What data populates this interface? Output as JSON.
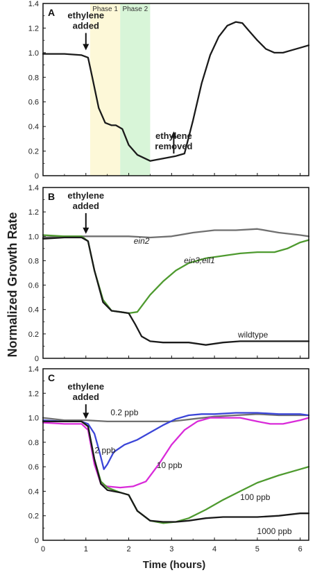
{
  "chart_data": {
    "type": "line",
    "ylabel": "Normalized Growth Rate",
    "xlabel": "Time (hours)",
    "xlim": [
      0,
      6.2
    ],
    "x_ticks": [
      "0",
      "1",
      "2",
      "3",
      "4",
      "5",
      "6"
    ],
    "ylim": [
      0,
      1.4
    ],
    "y_ticks": [
      "0",
      "0.2",
      "0.4",
      "0.6",
      "0.8",
      "1.0",
      "1.2",
      "1.4"
    ],
    "panels": [
      {
        "letter": "A",
        "shaded_regions": [
          {
            "label": "Phase 1",
            "x_start": 1.1,
            "x_end": 1.8,
            "color": "#fdf8d8"
          },
          {
            "label": "Phase 2",
            "x_start": 1.8,
            "x_end": 2.5,
            "color": "#d8f5d8"
          }
        ],
        "annotations": [
          {
            "text": "ethylene added",
            "lines": [
              "ethylene",
              "added"
            ],
            "arrow_x": 1.0,
            "arrow_from_y": 1.16,
            "arrow_to_y": 1.02,
            "direction": "down"
          },
          {
            "text": "ethylene removed",
            "lines": [
              "ethylene",
              "removed"
            ],
            "arrow_x": 3.05,
            "arrow_from_y": 0.18,
            "arrow_to_y": 0.36,
            "direction": "up"
          }
        ],
        "series": [
          {
            "color": "#1a1a1a",
            "x": [
              0,
              0.5,
              0.9,
              1.05,
              1.15,
              1.3,
              1.45,
              1.6,
              1.7,
              1.85,
              2.0,
              2.2,
              2.5,
              2.8,
              3.1,
              3.3,
              3.5,
              3.7,
              3.9,
              4.1,
              4.3,
              4.5,
              4.65,
              4.8,
              5.0,
              5.2,
              5.4,
              5.6,
              5.8,
              6.0,
              6.2
            ],
            "y": [
              0.99,
              0.99,
              0.98,
              0.96,
              0.8,
              0.55,
              0.43,
              0.41,
              0.41,
              0.38,
              0.25,
              0.17,
              0.12,
              0.14,
              0.16,
              0.18,
              0.45,
              0.75,
              0.98,
              1.13,
              1.22,
              1.25,
              1.24,
              1.18,
              1.1,
              1.03,
              1.0,
              1.0,
              1.02,
              1.04,
              1.06
            ]
          }
        ]
      },
      {
        "letter": "B",
        "annotations": [
          {
            "text": "ethylene added",
            "lines": [
              "ethylene",
              "added"
            ],
            "arrow_x": 1.0,
            "arrow_from_y": 1.19,
            "arrow_to_y": 1.02,
            "direction": "down"
          }
        ],
        "labels": [
          {
            "text": "ein2",
            "x": 2.3,
            "y": 0.94,
            "italic": true
          },
          {
            "text": "ein3;eil1",
            "x": 3.65,
            "y": 0.78,
            "italic": true
          },
          {
            "text": "wildtype",
            "x": 4.9,
            "y": 0.17,
            "italic": false
          }
        ],
        "series": [
          {
            "name": "ein2",
            "color": "#707070",
            "x": [
              0,
              0.5,
              1.0,
              1.5,
              2.0,
              2.5,
              3.0,
              3.5,
              4.0,
              4.5,
              5.0,
              5.5,
              6.0,
              6.2
            ],
            "y": [
              0.99,
              1.0,
              1.0,
              1.0,
              1.0,
              0.99,
              1.0,
              1.03,
              1.05,
              1.05,
              1.06,
              1.03,
              1.01,
              1.0
            ]
          },
          {
            "name": "ein3;eil1",
            "color": "#4e9a2f",
            "x": [
              0,
              0.5,
              0.9,
              1.05,
              1.2,
              1.4,
              1.6,
              1.8,
              2.0,
              2.2,
              2.5,
              2.8,
              3.1,
              3.4,
              3.8,
              4.2,
              4.6,
              5.0,
              5.4,
              5.7,
              6.0,
              6.2
            ],
            "y": [
              1.01,
              1.0,
              1.0,
              0.96,
              0.72,
              0.48,
              0.39,
              0.38,
              0.37,
              0.38,
              0.52,
              0.63,
              0.72,
              0.78,
              0.82,
              0.84,
              0.86,
              0.87,
              0.87,
              0.9,
              0.95,
              0.97
            ]
          },
          {
            "name": "wildtype",
            "color": "#1a1a1a",
            "x": [
              0,
              0.5,
              0.9,
              1.05,
              1.2,
              1.4,
              1.6,
              1.8,
              2.0,
              2.15,
              2.3,
              2.5,
              2.8,
              3.1,
              3.4,
              3.8,
              4.2,
              4.6,
              5.0,
              5.5,
              6.0,
              6.2
            ],
            "y": [
              0.98,
              0.99,
              0.99,
              0.96,
              0.72,
              0.46,
              0.39,
              0.38,
              0.37,
              0.28,
              0.18,
              0.14,
              0.13,
              0.13,
              0.13,
              0.11,
              0.13,
              0.14,
              0.14,
              0.14,
              0.14,
              0.14
            ]
          }
        ]
      },
      {
        "letter": "C",
        "annotations": [
          {
            "text": "ethylene added",
            "lines": [
              "ethylene",
              "added"
            ],
            "arrow_x": 1.0,
            "arrow_from_y": 1.11,
            "arrow_to_y": 0.99,
            "direction": "down"
          }
        ],
        "labels": [
          {
            "text": "0.2 ppb",
            "x": 1.9,
            "y": 1.02,
            "italic": false
          },
          {
            "text": "2 ppb",
            "x": 1.45,
            "y": 0.71,
            "italic": false
          },
          {
            "text": "10 ppb",
            "x": 2.95,
            "y": 0.59,
            "italic": false
          },
          {
            "text": "100 ppb",
            "x": 4.95,
            "y": 0.33,
            "italic": false
          },
          {
            "text": "1000 ppb",
            "x": 5.4,
            "y": 0.05,
            "italic": false
          }
        ],
        "series": [
          {
            "name": "0.2 ppb",
            "color": "#707070",
            "x": [
              0,
              0.5,
              1.0,
              1.5,
              2.0,
              2.5,
              3.0,
              3.5,
              4.0,
              4.5,
              5.0,
              5.5,
              6.0,
              6.2
            ],
            "y": [
              1.0,
              0.98,
              0.98,
              0.97,
              0.97,
              0.97,
              0.97,
              0.99,
              1.01,
              1.02,
              1.03,
              1.02,
              1.02,
              1.02
            ]
          },
          {
            "name": "2 ppb",
            "color": "#3b45d8",
            "x": [
              0,
              0.5,
              0.9,
              1.05,
              1.2,
              1.32,
              1.42,
              1.5,
              1.65,
              1.9,
              2.2,
              2.5,
              2.8,
              3.1,
              3.4,
              3.7,
              4.0,
              4.5,
              5.0,
              5.5,
              6.0,
              6.2
            ],
            "y": [
              0.98,
              0.97,
              0.97,
              0.95,
              0.87,
              0.72,
              0.58,
              0.62,
              0.72,
              0.78,
              0.82,
              0.88,
              0.94,
              0.99,
              1.02,
              1.03,
              1.03,
              1.04,
              1.04,
              1.03,
              1.03,
              1.02
            ]
          },
          {
            "name": "10 ppb",
            "color": "#d92ad9",
            "x": [
              0,
              0.5,
              0.9,
              1.05,
              1.2,
              1.35,
              1.5,
              1.8,
              2.1,
              2.4,
              2.7,
              3.0,
              3.3,
              3.6,
              3.9,
              4.2,
              4.6,
              5.0,
              5.3,
              5.6,
              6.0,
              6.2
            ],
            "y": [
              0.96,
              0.95,
              0.95,
              0.9,
              0.62,
              0.46,
              0.44,
              0.43,
              0.44,
              0.48,
              0.62,
              0.78,
              0.9,
              0.97,
              1.0,
              1.0,
              1.0,
              0.97,
              0.95,
              0.95,
              0.98,
              1.0
            ]
          },
          {
            "name": "100 ppb",
            "color": "#4e9a2f",
            "x": [
              0,
              0.5,
              0.9,
              1.05,
              1.2,
              1.35,
              1.5,
              1.8,
              2.0,
              2.2,
              2.5,
              2.8,
              3.1,
              3.4,
              3.8,
              4.2,
              4.6,
              5.0,
              5.5,
              6.0,
              6.2
            ],
            "y": [
              0.97,
              0.97,
              0.97,
              0.93,
              0.66,
              0.48,
              0.43,
              0.39,
              0.37,
              0.24,
              0.16,
              0.14,
              0.15,
              0.18,
              0.25,
              0.33,
              0.4,
              0.47,
              0.53,
              0.58,
              0.6
            ]
          },
          {
            "name": "1000 ppb",
            "color": "#1a1a1a",
            "x": [
              0,
              0.5,
              0.9,
              1.05,
              1.2,
              1.35,
              1.5,
              1.8,
              2.0,
              2.2,
              2.5,
              2.8,
              3.1,
              3.4,
              3.8,
              4.2,
              4.6,
              5.0,
              5.5,
              6.0,
              6.2
            ],
            "y": [
              0.97,
              0.97,
              0.97,
              0.93,
              0.66,
              0.46,
              0.41,
              0.39,
              0.37,
              0.24,
              0.16,
              0.15,
              0.15,
              0.16,
              0.18,
              0.19,
              0.19,
              0.19,
              0.2,
              0.22,
              0.22
            ]
          }
        ]
      }
    ]
  }
}
